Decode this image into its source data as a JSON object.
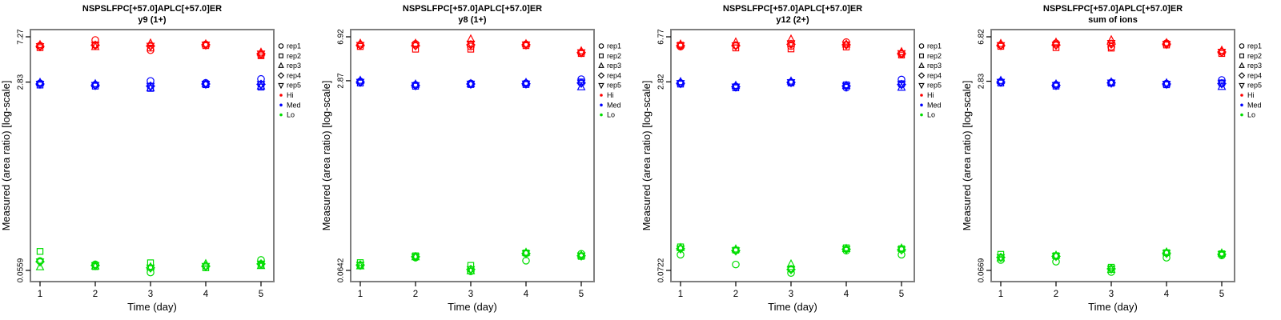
{
  "figure": {
    "ylabel": "Measured (area ratio) [log-scale]",
    "xlabel": "Time (day)",
    "box_border_color": "#7f7f7f",
    "text_color": "#000000",
    "legend": {
      "replicates": [
        {
          "label": "rep1",
          "marker": "circle"
        },
        {
          "label": "rep2",
          "marker": "square"
        },
        {
          "label": "rep3",
          "marker": "triangle-up"
        },
        {
          "label": "rep4",
          "marker": "diamond"
        },
        {
          "label": "rep5",
          "marker": "triangle-down"
        }
      ],
      "levels": [
        {
          "label": "Hi",
          "color": "#ff0000"
        },
        {
          "label": "Med",
          "color": "#0000ff"
        },
        {
          "label": "Lo",
          "color": "#00dd00"
        }
      ]
    }
  },
  "chart_data": [
    {
      "type": "scatter",
      "title": "NSPSLFPC[+57.0]APLC[+57.0]ER",
      "subtitle": "y9 (1+)",
      "xlabel": "Time (day)",
      "ylabel": "Measured (area ratio) [log-scale]",
      "y_scale": "log",
      "x": [
        1,
        2,
        3,
        4,
        5
      ],
      "x_ticks": [
        "1",
        "2",
        "3",
        "4",
        "5"
      ],
      "y_ticks": [
        7.27,
        2.83,
        0.0559
      ],
      "y_tick_labels": [
        "7.27",
        "2.83",
        "0.0559"
      ],
      "legend_position": "right",
      "grid": false,
      "series": [
        {
          "name": "Hi",
          "color": "#ff0000",
          "replicates": {
            "rep1": [
              6.05,
              6.8,
              5.5,
              6.2,
              5.0
            ],
            "rep2": [
              5.8,
              6.15,
              5.75,
              6.05,
              4.9
            ],
            "rep3": [
              6.15,
              5.9,
              6.35,
              6.25,
              5.25
            ],
            "rep4": [
              5.95,
              6.1,
              6.0,
              6.15,
              5.1
            ],
            "rep5": [
              5.95,
              6.1,
              6.0,
              6.15,
              5.1
            ]
          }
        },
        {
          "name": "Med",
          "color": "#0000ff",
          "replicates": {
            "rep1": [
              2.76,
              2.68,
              2.9,
              2.78,
              3.02
            ],
            "rep2": [
              2.66,
              2.6,
              2.48,
              2.68,
              2.55
            ],
            "rep3": [
              2.8,
              2.72,
              2.5,
              2.74,
              2.6
            ],
            "rep4": [
              2.72,
              2.65,
              2.6,
              2.72,
              2.7
            ],
            "rep5": [
              2.72,
              2.65,
              2.6,
              2.72,
              2.7
            ]
          }
        },
        {
          "name": "Lo",
          "color": "#00dd00",
          "replicates": {
            "rep1": [
              0.068,
              0.0635,
              0.0535,
              0.061,
              0.0695
            ],
            "rep2": [
              0.083,
              0.0605,
              0.0655,
              0.059,
              0.0625
            ],
            "rep3": [
              0.06,
              0.061,
              0.06,
              0.064,
              0.0615
            ],
            "rep4": [
              0.067,
              0.062,
              0.059,
              0.061,
              0.064
            ],
            "rep5": [
              0.067,
              0.062,
              0.059,
              0.061,
              0.064
            ]
          }
        }
      ]
    },
    {
      "type": "scatter",
      "title": "NSPSLFPC[+57.0]APLC[+57.0]ER",
      "subtitle": "y8 (1+)",
      "xlabel": "Time (day)",
      "ylabel": "Measured (area ratio) [log-scale]",
      "y_scale": "log",
      "x": [
        1,
        2,
        3,
        4,
        5
      ],
      "x_ticks": [
        "1",
        "2",
        "3",
        "4",
        "5"
      ],
      "y_ticks": [
        6.92,
        2.87,
        0.0642
      ],
      "y_tick_labels": [
        "6.92",
        "2.87",
        "0.0642"
      ],
      "legend_position": "right",
      "grid": false,
      "series": [
        {
          "name": "Hi",
          "color": "#ff0000",
          "replicates": {
            "rep1": [
              5.9,
              6.0,
              5.7,
              5.95,
              5.05
            ],
            "rep2": [
              5.7,
              5.4,
              5.4,
              5.8,
              4.95
            ],
            "rep3": [
              6.05,
              6.05,
              6.6,
              6.0,
              5.2
            ],
            "rep4": [
              5.85,
              5.8,
              5.9,
              5.9,
              5.05
            ],
            "rep5": [
              5.85,
              5.8,
              6.0,
              5.9,
              5.05
            ]
          }
        },
        {
          "name": "Med",
          "color": "#0000ff",
          "replicates": {
            "rep1": [
              2.83,
              2.64,
              2.72,
              2.73,
              2.96
            ],
            "rep2": [
              2.74,
              2.57,
              2.66,
              2.66,
              2.8
            ],
            "rep3": [
              2.88,
              2.67,
              2.7,
              2.76,
              2.53
            ],
            "rep4": [
              2.79,
              2.61,
              2.69,
              2.7,
              2.74
            ],
            "rep5": [
              2.79,
              2.61,
              2.69,
              2.7,
              2.74
            ]
          }
        },
        {
          "name": "Lo",
          "color": "#00dd00",
          "replicates": {
            "rep1": [
              0.0706,
              0.083,
              0.063,
              0.078,
              0.0895
            ],
            "rep2": [
              0.075,
              0.086,
              0.071,
              0.091,
              0.085
            ],
            "rep3": [
              0.07,
              0.084,
              0.0635,
              0.092,
              0.087
            ],
            "rep4": [
              0.0715,
              0.0845,
              0.0655,
              0.09,
              0.086
            ],
            "rep5": [
              0.0715,
              0.0845,
              0.0655,
              0.09,
              0.086
            ]
          }
        }
      ]
    },
    {
      "type": "scatter",
      "title": "NSPSLFPC[+57.0]APLC[+57.0]ER",
      "subtitle": "y12 (2+)",
      "xlabel": "Time (day)",
      "ylabel": "Measured (area ratio) [log-scale]",
      "y_scale": "log",
      "x": [
        1,
        2,
        3,
        4,
        5
      ],
      "x_ticks": [
        "1",
        "2",
        "3",
        "4",
        "5"
      ],
      "y_ticks": [
        6.77,
        2.82,
        0.0722
      ],
      "y_tick_labels": [
        "6.77",
        "2.82",
        "0.0722"
      ],
      "legend_position": "right",
      "grid": false,
      "series": [
        {
          "name": "Hi",
          "color": "#ff0000",
          "replicates": {
            "rep1": [
              5.6,
              5.75,
              5.65,
              6.1,
              4.85
            ],
            "rep2": [
              5.75,
              5.45,
              5.35,
              5.55,
              4.75
            ],
            "rep3": [
              5.85,
              6.1,
              6.45,
              5.85,
              5.05
            ],
            "rep4": [
              5.7,
              5.7,
              5.85,
              5.8,
              4.9
            ],
            "rep5": [
              5.7,
              5.7,
              5.95,
              5.8,
              4.9
            ]
          }
        },
        {
          "name": "Med",
          "color": "#0000ff",
          "replicates": {
            "rep1": [
              2.76,
              2.58,
              2.8,
              2.52,
              2.95
            ],
            "rep2": [
              2.7,
              2.51,
              2.76,
              2.66,
              2.72
            ],
            "rep3": [
              2.82,
              2.62,
              2.85,
              2.62,
              2.53
            ],
            "rep4": [
              2.74,
              2.56,
              2.79,
              2.6,
              2.68
            ],
            "rep5": [
              2.74,
              2.56,
              2.79,
              2.6,
              2.68
            ]
          }
        },
        {
          "name": "Lo",
          "color": "#00dd00",
          "replicates": {
            "rep1": [
              0.098,
              0.081,
              0.0687,
              0.106,
              0.098
            ],
            "rep2": [
              0.114,
              0.107,
              0.0745,
              0.112,
              0.11
            ],
            "rep3": [
              0.112,
              0.109,
              0.0815,
              0.11,
              0.111
            ],
            "rep4": [
              0.11,
              0.106,
              0.0735,
              0.109,
              0.108
            ],
            "rep5": [
              0.11,
              0.106,
              0.0735,
              0.109,
              0.108
            ]
          }
        }
      ]
    },
    {
      "type": "scatter",
      "title": "NSPSLFPC[+57.0]APLC[+57.0]ER",
      "subtitle": "sum of ions",
      "xlabel": "Time (day)",
      "ylabel": "Measured (area ratio) [log-scale]",
      "y_scale": "log",
      "x": [
        1,
        2,
        3,
        4,
        5
      ],
      "x_ticks": [
        "1",
        "2",
        "3",
        "4",
        "5"
      ],
      "y_ticks": [
        6.82,
        2.83,
        0.0669
      ],
      "y_tick_labels": [
        "6.82",
        "2.83",
        "0.0669"
      ],
      "legend_position": "right",
      "grid": false,
      "series": [
        {
          "name": "Hi",
          "color": "#ff0000",
          "replicates": {
            "rep1": [
              5.8,
              6.0,
              5.6,
              6.0,
              5.05
            ],
            "rep2": [
              5.65,
              5.5,
              5.45,
              5.8,
              4.9
            ],
            "rep3": [
              5.95,
              6.1,
              6.4,
              6.05,
              5.2
            ],
            "rep4": [
              5.75,
              5.8,
              5.9,
              5.9,
              5.05
            ],
            "rep5": [
              5.75,
              5.8,
              6.0,
              5.9,
              5.05
            ]
          }
        },
        {
          "name": "Med",
          "color": "#0000ff",
          "replicates": {
            "rep1": [
              2.8,
              2.64,
              2.76,
              2.7,
              2.9
            ],
            "rep2": [
              2.73,
              2.57,
              2.72,
              2.64,
              2.74
            ],
            "rep3": [
              2.86,
              2.67,
              2.78,
              2.73,
              2.54
            ],
            "rep4": [
              2.78,
              2.61,
              2.74,
              2.68,
              2.7
            ],
            "rep5": [
              2.78,
              2.61,
              2.74,
              2.68,
              2.7
            ]
          }
        },
        {
          "name": "Lo",
          "color": "#00dd00",
          "replicates": {
            "rep1": [
              0.0822,
              0.0795,
              0.0648,
              0.086,
              0.09
            ],
            "rep2": [
              0.092,
              0.0895,
              0.0712,
              0.095,
              0.093
            ],
            "rep3": [
              0.0855,
              0.09,
              0.068,
              0.096,
              0.094
            ],
            "rep4": [
              0.0865,
              0.0885,
              0.069,
              0.094,
              0.092
            ],
            "rep5": [
              0.0865,
              0.0885,
              0.069,
              0.094,
              0.092
            ]
          }
        }
      ]
    }
  ]
}
